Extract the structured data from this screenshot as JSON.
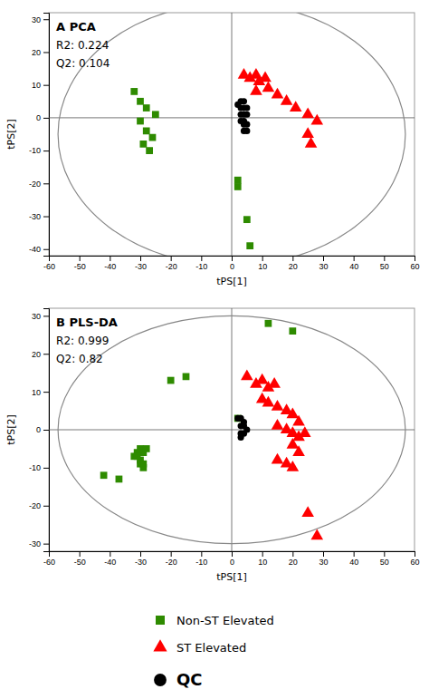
{
  "chart_data": [
    {
      "type": "scatter",
      "title": "A   PCA",
      "annotations": [
        "R2: 0.224",
        "Q2: 0.104"
      ],
      "xlabel": "tPS[1]",
      "ylabel": "tPS[2]",
      "xlim": [
        -60,
        60
      ],
      "ylim": [
        -42,
        32
      ],
      "xticks": [
        -60,
        -50,
        -40,
        -30,
        -20,
        -10,
        0,
        10,
        20,
        30,
        40,
        50,
        60
      ],
      "yticks": [
        -40,
        -30,
        -20,
        -10,
        0,
        10,
        20,
        30
      ],
      "ellipse": {
        "cx": 0,
        "cy": -5,
        "rx": 57,
        "ry": 40,
        "color": "#888888"
      },
      "crosshair": {
        "x": 0,
        "y": 0,
        "color": "#555555"
      },
      "series": [
        {
          "color": "#2e8b00",
          "marker": "square",
          "x": [
            -32,
            -30,
            -28,
            -25,
            -30,
            -28,
            -26,
            -29,
            -27,
            2,
            2,
            5,
            6
          ],
          "values": [
            8,
            5,
            3,
            1,
            -1,
            -4,
            -6,
            -8,
            -10,
            -19,
            -21,
            -31,
            -39
          ]
        },
        {
          "color": "#ff0000",
          "marker": "triangle",
          "x": [
            4,
            6,
            8,
            9,
            11,
            8,
            12,
            15,
            18,
            21,
            25,
            28,
            25,
            26
          ],
          "values": [
            13,
            12,
            13,
            11,
            12,
            8,
            9,
            7,
            5,
            3,
            1,
            -1,
            -5,
            -8
          ]
        },
        {
          "color": "#000000",
          "marker": "circle",
          "x": [
            2,
            3,
            4,
            3,
            4,
            5,
            3,
            4,
            5,
            4,
            3,
            4,
            5,
            4,
            5
          ],
          "values": [
            4,
            5,
            5,
            3,
            3,
            3,
            1,
            1,
            1,
            -1,
            -1,
            -2,
            -2,
            -4,
            -4
          ]
        }
      ]
    },
    {
      "type": "scatter",
      "title": "B   PLS-DA",
      "annotations": [
        "R2: 0.999",
        "Q2: 0.82"
      ],
      "xlabel": "tPS[1]",
      "ylabel": "tPS[2]",
      "xlim": [
        -60,
        60
      ],
      "ylim": [
        -32,
        32
      ],
      "xticks": [
        -60,
        -50,
        -40,
        -30,
        -20,
        -10,
        0,
        10,
        20,
        30,
        40,
        50,
        60
      ],
      "yticks": [
        -30,
        -20,
        -10,
        0,
        10,
        20,
        30
      ],
      "ellipse": {
        "cx": 0,
        "cy": 0,
        "rx": 57,
        "ry": 30,
        "color": "#888888"
      },
      "crosshair": {
        "x": 0,
        "y": 0,
        "color": "#555555"
      },
      "legend": "bottom",
      "series": [
        {
          "name": "Non-ST Elevated",
          "color": "#2e8b00",
          "marker": "square",
          "x": [
            -42,
            -37,
            -32,
            -31,
            -30,
            -29,
            -31,
            -30,
            -29,
            -28,
            -30,
            -29,
            -20,
            -15,
            2,
            12,
            20
          ],
          "values": [
            -12,
            -13,
            -7,
            -6,
            -5,
            -6,
            -7,
            -8,
            -9,
            -5,
            -9,
            -10,
            13,
            14,
            3,
            28,
            26
          ]
        },
        {
          "name": "ST Elevated",
          "color": "#ff0000",
          "marker": "triangle",
          "x": [
            5,
            8,
            10,
            12,
            14,
            10,
            12,
            15,
            18,
            20,
            22,
            15,
            18,
            20,
            22,
            24,
            20,
            22,
            15,
            18,
            20,
            25,
            28
          ],
          "values": [
            14,
            12,
            13,
            11,
            12,
            8,
            7,
            6,
            5,
            4,
            2,
            1,
            0,
            -1,
            -2,
            -1,
            -4,
            -6,
            -8,
            -9,
            -10,
            -22,
            -28
          ]
        },
        {
          "name": "QC",
          "color": "#000000",
          "marker": "circle",
          "x": [
            2,
            3,
            4,
            3,
            4,
            5,
            3,
            4,
            3
          ],
          "values": [
            3,
            3,
            2,
            1,
            1,
            0,
            -1,
            -1,
            -2
          ]
        }
      ]
    }
  ]
}
